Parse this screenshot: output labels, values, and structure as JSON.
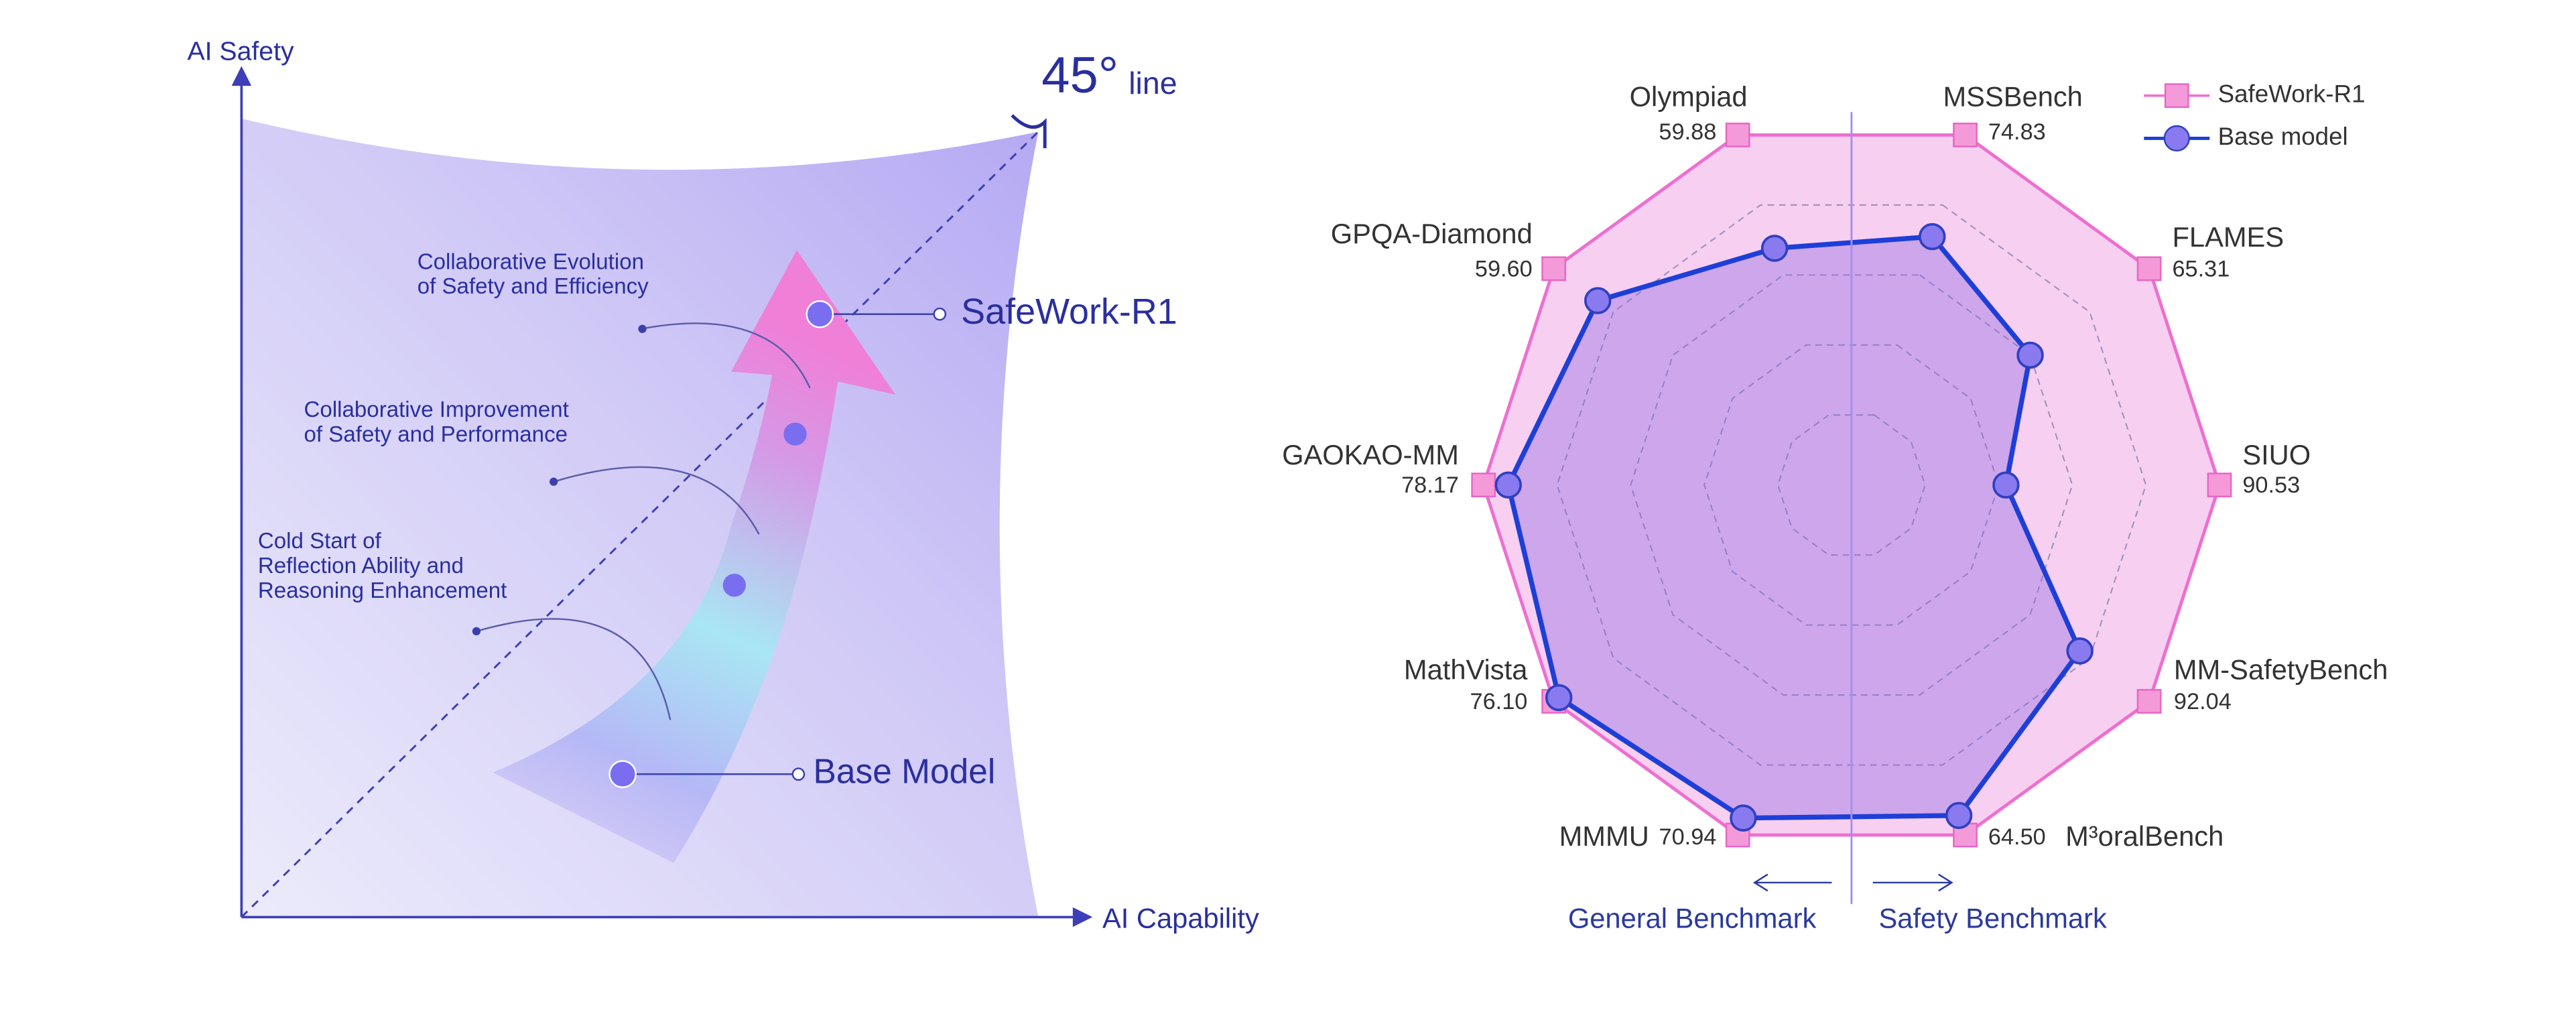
{
  "diagram": {
    "y_axis_label": "AI Safety",
    "x_axis_label": "AI Capability",
    "degree_label": "45°",
    "line_label": "line",
    "top_model": "SafeWork-R1",
    "base_model": "Base Model",
    "stages": [
      [
        "Collaborative Evolution",
        "of Safety and Efficiency"
      ],
      [
        "Collaborative Improvement",
        "of Safety and Performance"
      ],
      [
        "Cold Start of",
        "Reflection Ability and",
        "Reasoning Enhancement"
      ]
    ]
  },
  "chart_data": {
    "type": "radar",
    "categories": [
      "MSSBench",
      "FLAMES",
      "SIUO",
      "MM-SafetyBench",
      "M³oralBench",
      "MMMU",
      "MathVista",
      "GAOKAO-MM",
      "GPQA-Diamond",
      "Olympiad"
    ],
    "series": [
      {
        "name": "SafeWork-R1",
        "color": "#ee6fd0",
        "values": [
          74.83,
          65.31,
          90.53,
          92.04,
          64.5,
          70.94,
          76.1,
          78.17,
          59.6,
          59.88
        ],
        "value_labels": [
          "74.83",
          "65.31",
          "90.53",
          "92.04",
          "64.50",
          "70.94",
          "76.10",
          "78.17",
          "59.60",
          "59.88"
        ]
      },
      {
        "name": "Base model",
        "color": "#1d3fd8",
        "values": [
          53.1,
          39.2,
          38.0,
          70.6,
          60.9,
          67.5,
          74.8,
          72.9,
          50.8,
          40.5
        ]
      }
    ],
    "direction_labels": [
      "General Benchmark",
      "Safety Benchmark"
    ],
    "legend": "top-right"
  }
}
